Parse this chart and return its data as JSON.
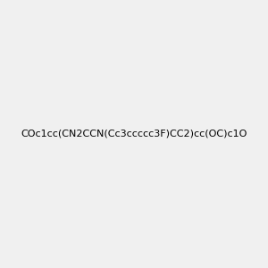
{
  "smiles": "COc1cc(CN2CCN(Cc3ccccc3F)CC2)cc(OC)c1O",
  "title": "",
  "background_color": "#f0f0f0",
  "bond_color": "#000000",
  "atom_colors": {
    "O": "#ff0000",
    "N": "#0000ff",
    "F": "#ff00ff",
    "H": "#008080",
    "C": "#000000"
  },
  "figsize": [
    3.0,
    3.0
  ],
  "dpi": 100
}
